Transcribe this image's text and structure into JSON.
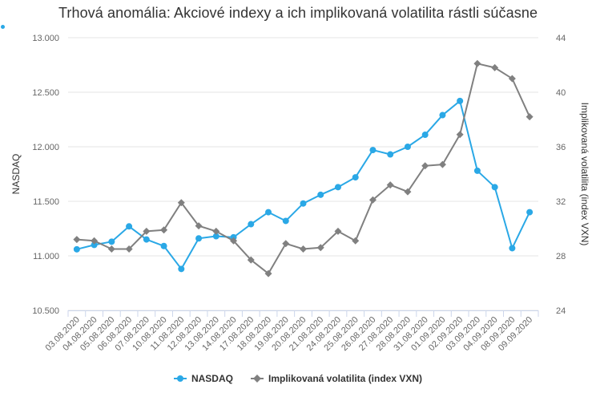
{
  "chart_data": {
    "type": "line",
    "title": "Trhová anomália: Akciové indexy a ich implikovaná volatilita rástli súčasne",
    "categories": [
      "03.08.2020",
      "04.08.2020",
      "05.08.2020",
      "06.08.2020",
      "07.08.2020",
      "10.08.2020",
      "11.08.2020",
      "12.08.2020",
      "13.08.2020",
      "14.08.2020",
      "17.08.2020",
      "18.08.2020",
      "19.08.2020",
      "20.08.2020",
      "21.08.2020",
      "24.08.2020",
      "25.08.2020",
      "26.08.2020",
      "27.08.2020",
      "28.08.2020",
      "31.08.2020",
      "01.09.2020",
      "02.09.2020",
      "03.09.2020",
      "04.09.2020",
      "08.09.2020",
      "09.09.2020"
    ],
    "y_left": {
      "label": "NASDAQ",
      "min": 10500,
      "max": 13000,
      "ticks": [
        "10.500",
        "11.000",
        "11.500",
        "12.000",
        "12.500",
        "13.000"
      ]
    },
    "y_right": {
      "label": "Implikovaná volatilita (index VXN)",
      "min": 24,
      "max": 44,
      "ticks": [
        "24",
        "28",
        "32",
        "36",
        "40",
        "44"
      ]
    },
    "series": [
      {
        "name": "NASDAQ",
        "axis": "left",
        "color": "#2aa8e6",
        "marker": "circle",
        "values": [
          11060,
          11100,
          11130,
          11270,
          11150,
          11090,
          10880,
          11160,
          11180,
          11170,
          11290,
          11400,
          11320,
          11480,
          11560,
          11630,
          11720,
          11970,
          11930,
          12000,
          12110,
          12290,
          12420,
          11780,
          11630,
          11070,
          11400
        ]
      },
      {
        "name": "Implikovaná volatilita (index VXN)",
        "axis": "right",
        "color": "#808080",
        "marker": "diamond",
        "values": [
          29.2,
          29.1,
          28.5,
          28.5,
          29.8,
          29.9,
          31.9,
          30.2,
          29.8,
          29.1,
          27.7,
          26.7,
          28.9,
          28.5,
          28.6,
          29.8,
          29.1,
          32.1,
          33.2,
          32.7,
          34.6,
          34.7,
          36.9,
          42.1,
          41.8,
          41.0,
          38.2
        ]
      }
    ],
    "grid": "horizontal",
    "legend_position": "bottom-center"
  }
}
